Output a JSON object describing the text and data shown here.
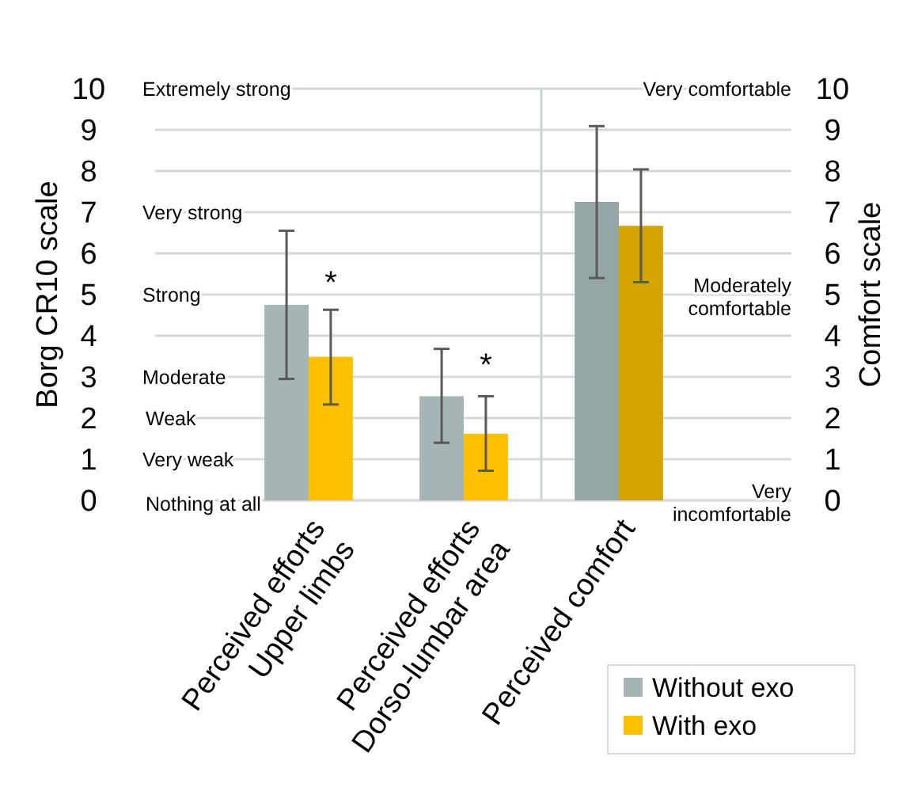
{
  "chart_data": [
    {
      "type": "bar",
      "ylabel": "Borg CR10 scale",
      "categories": [
        "Perceived efforts\nUpper limbs",
        "Perceived efforts\nDorso-lumbar area"
      ],
      "series": [
        {
          "name": "Without exo",
          "color": "#a5b4b4",
          "values": [
            4.75,
            2.53
          ],
          "errors": [
            [
              2.95,
              6.55
            ],
            [
              1.4,
              3.68
            ]
          ]
        },
        {
          "name": "With exo",
          "color": "#ffc000",
          "values": [
            3.49,
            1.62
          ],
          "errors": [
            [
              2.33,
              4.63
            ],
            [
              0.72,
              2.53
            ]
          ]
        }
      ],
      "ylim": [
        0,
        10
      ],
      "yticks": [
        0,
        1,
        2,
        3,
        4,
        5,
        6,
        7,
        8,
        9,
        10
      ],
      "grid": "y",
      "legend": "bottom right",
      "annotations": [
        "Extremely strong",
        "Very strong",
        "Strong",
        "Moderate",
        "Weak",
        "Very weak",
        "Nothing at all",
        "*",
        "*"
      ]
    },
    {
      "type": "bar",
      "y2label": "Comfort scale",
      "categories": [
        "Perceived comfort"
      ],
      "series": [
        {
          "color": "#95a6a6",
          "axis": "y2",
          "values": [
            7.25
          ],
          "errors": [
            [
              5.4,
              9.09
            ]
          ]
        },
        {
          "color": "#d6a400",
          "axis": "y2",
          "values": [
            6.67
          ],
          "errors": [
            [
              5.3,
              8.04
            ]
          ]
        }
      ],
      "y2lim": [
        0,
        10
      ],
      "y2ticks": [
        0,
        1,
        2,
        3,
        4,
        5,
        6,
        7,
        8,
        9,
        10
      ],
      "grid": "y",
      "annotations": [
        "Very comfortable",
        "Moderately\ncomfortable",
        "Very\nincomfortable"
      ]
    }
  ]
}
